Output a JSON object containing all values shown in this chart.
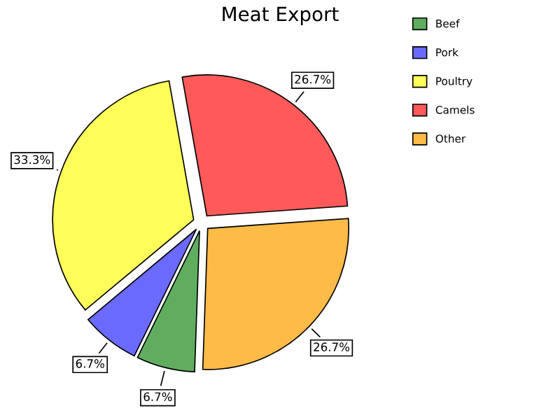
{
  "chart_data": {
    "type": "pie",
    "title": "Meat Export",
    "categories": [
      "Beef",
      "Pork",
      "Poultry",
      "Camels",
      "Other"
    ],
    "values": [
      6.7,
      6.7,
      33.3,
      26.7,
      26.7
    ],
    "colors": [
      "#5fae5f",
      "#6a6aff",
      "#ffff5a",
      "#ff5a5a",
      "#ffbb48"
    ],
    "value_labels": [
      "6.7%",
      "6.7%",
      "33.3%",
      "26.7%",
      "26.7%"
    ],
    "legend": "top right"
  }
}
